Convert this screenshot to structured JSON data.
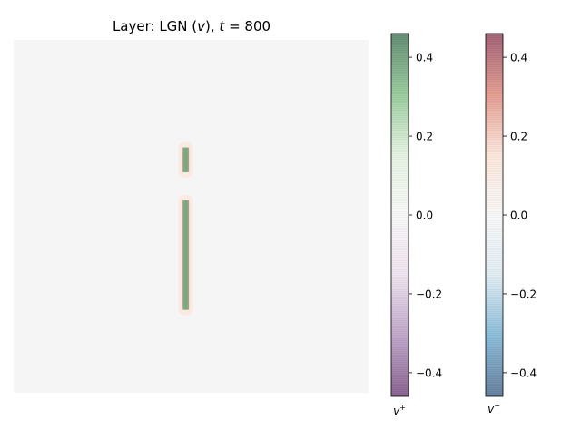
{
  "chart_data": {
    "type": "heatmap",
    "title": {
      "prefix": "Layer: LGN (",
      "var": "v",
      "middle": "), ",
      "tvar": "t",
      "suffix": " = 800"
    },
    "grid": false,
    "axes_visible": false,
    "image": {
      "description_values": "sparse map, mostly zero",
      "background_value": 0.0,
      "features": [
        {
          "name": "upper-short-bar",
          "v_plus": 0.35,
          "v_minus_halo": 0.06,
          "x_frac": 0.485,
          "y_from": 0.305,
          "y_to": 0.375
        },
        {
          "name": "lower-long-bar",
          "v_plus": 0.35,
          "v_minus_halo": 0.06,
          "x_frac": 0.485,
          "y_from": 0.455,
          "y_to": 0.765
        }
      ]
    },
    "colorbars": [
      {
        "name": "v_plus",
        "label_var": "v",
        "label_sup": "+",
        "cmap": "PRGn",
        "range": [
          -0.46,
          0.46
        ],
        "ticks": [
          0.4,
          0.2,
          0.0,
          -0.2,
          -0.4
        ],
        "tick_labels": [
          "0.4",
          "0.2",
          "0.0",
          "−0.2",
          "−0.4"
        ],
        "colors": [
          "#40004b",
          "#9970ab",
          "#e7d4e8",
          "#f7f7f7",
          "#d9f0d3",
          "#5aae61",
          "#00441b"
        ]
      },
      {
        "name": "v_minus",
        "label_var": "v",
        "label_sup": "−",
        "cmap": "RdBu_r",
        "range": [
          -0.46,
          0.46
        ],
        "ticks": [
          0.4,
          0.2,
          0.0,
          -0.2,
          -0.4
        ],
        "tick_labels": [
          "0.4",
          "0.2",
          "0.0",
          "−0.2",
          "−0.4"
        ],
        "colors": [
          "#053061",
          "#4393c3",
          "#d1e5f0",
          "#f7f7f7",
          "#fddbc7",
          "#d6604d",
          "#67001f"
        ]
      }
    ],
    "colors": {
      "background": "#f5f5f5",
      "bar_green": "#6dae86",
      "bar_edge": "#b79b7a",
      "halo": "#fbe9e0"
    }
  }
}
